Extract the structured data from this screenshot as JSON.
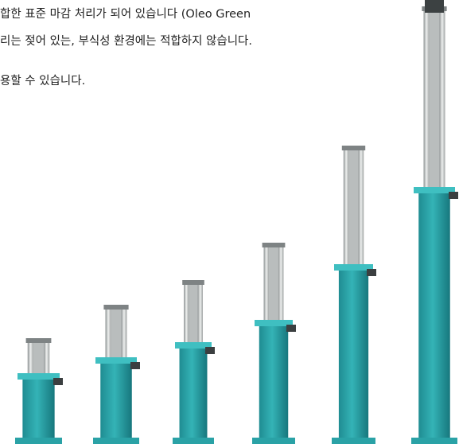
{
  "text": {
    "lines": [
      "합한 표준 마감 처리가 되어 있습니다 (Oleo Green",
      "리는 젖어 있는, 부식성 환경에는 적합하지 않습니다.",
      "용할 수 있습니다."
    ]
  }
}
